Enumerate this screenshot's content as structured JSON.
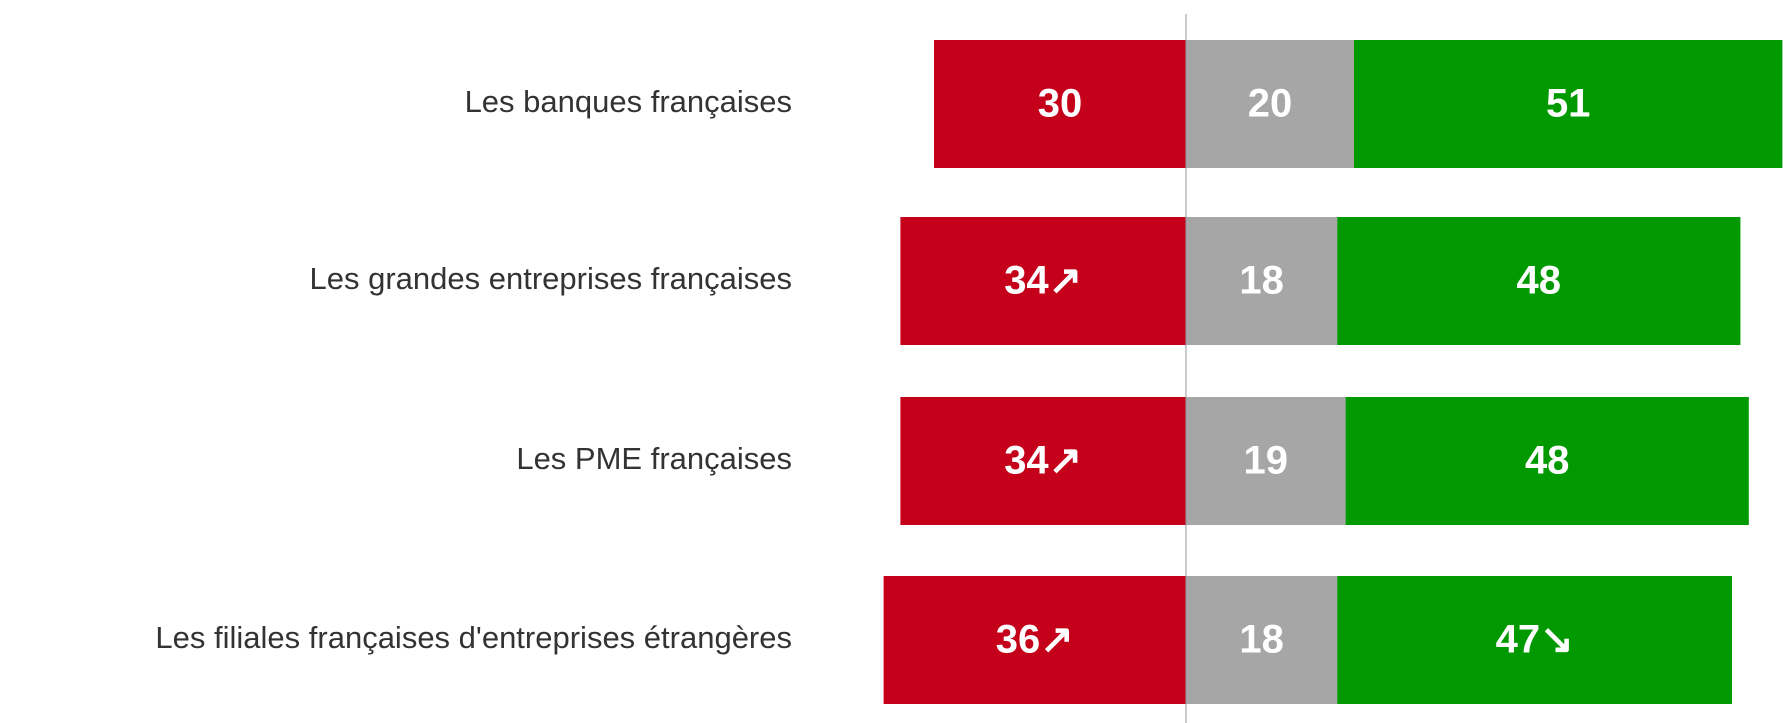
{
  "chart_data": {
    "type": "diverging_stacked_bar",
    "categories": [
      "Les banques françaises",
      "Les grandes entreprises françaises",
      "Les PME françaises",
      "Les filiales françaises d'entreprises  étrangères"
    ],
    "series": [
      {
        "color": "#c4001a",
        "values": [
          30,
          34,
          34,
          36
        ],
        "value_labels": [
          "30",
          "34↗",
          "34↗",
          "36↗"
        ]
      },
      {
        "color": "#a6a6a6",
        "values": [
          20,
          18,
          19,
          18
        ]
      },
      {
        "color": "#009900",
        "values": [
          51,
          48,
          48,
          47
        ],
        "value_labels": [
          "51",
          "48",
          "48",
          "47↘"
        ]
      }
    ]
  }
}
